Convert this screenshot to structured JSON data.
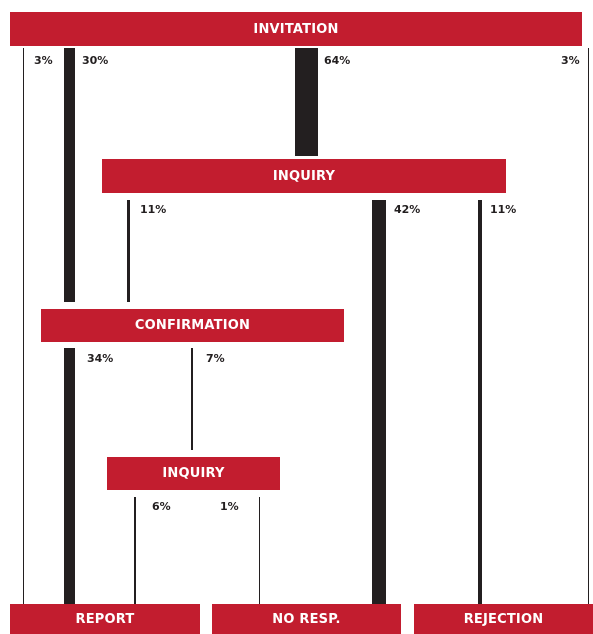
{
  "colors": {
    "box": "#c21d2f",
    "flow": "#231f20",
    "text_on_box": "#ffffff"
  },
  "boxes": {
    "invitation": "INVITATION",
    "inquiry_1": "INQUIRY",
    "confirmation": "CONFIRMATION",
    "inquiry_2": "INQUIRY",
    "report": "REPORT",
    "no_response": "NO RESP.",
    "rejection": "REJECTION"
  },
  "flows": {
    "invitation_to_report": "3%",
    "invitation_to_confirmation": "30%",
    "invitation_to_inquiry": "64%",
    "invitation_to_rejection": "3%",
    "inquiry_to_confirmation": "11%",
    "inquiry_to_no_response": "42%",
    "inquiry_to_rejection": "11%",
    "confirmation_to_report": "34%",
    "confirmation_to_inquiry": "7%",
    "inquiry2_to_report": "6%",
    "inquiry2_to_no_response": "1%"
  }
}
